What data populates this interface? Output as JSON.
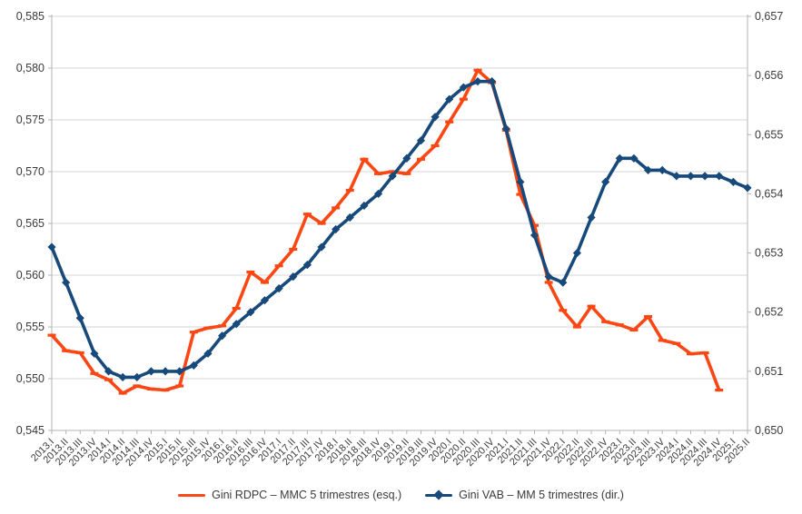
{
  "chart_data": {
    "type": "line",
    "title": "",
    "grid": "horizontal",
    "legend_position": "bottom",
    "categories": [
      "2013.I",
      "2013.II",
      "2013.III",
      "2013.IV",
      "2014.I",
      "2014.II",
      "2014.III",
      "2014.IV",
      "2015.I",
      "2015.II",
      "2015.III",
      "2015.IV",
      "2016.I",
      "2016.II",
      "2016.III",
      "2016.IV",
      "2017.I",
      "2017.II",
      "2017.III",
      "2017.IV",
      "2018.I",
      "2018.II",
      "2018.III",
      "2018.IV",
      "2019.I",
      "2019.II",
      "2019.III",
      "2019.IV",
      "2020.I",
      "2020.II",
      "2020.III",
      "2020.IV",
      "2021.I",
      "2021.II",
      "2021.III",
      "2021.IV",
      "2022.I",
      "2022.II",
      "2022.III",
      "2022.IV",
      "2023.I",
      "2023.II",
      "2023.III",
      "2023.IV",
      "2024.I",
      "2024.II",
      "2024.III",
      "2024.IV",
      "2025.I",
      "2025.II"
    ],
    "left_axis": {
      "min": 0.545,
      "max": 0.585,
      "step": 0.005,
      "tick_labels": [
        "0,585",
        "0,580",
        "0,575",
        "0,570",
        "0,565",
        "0,560",
        "0,555",
        "0,550",
        "0,545"
      ]
    },
    "right_axis": {
      "min": 0.65,
      "max": 0.657,
      "step": 0.001,
      "tick_labels": [
        "0,657",
        "0,656",
        "0,655",
        "0,654",
        "0,653",
        "0,652",
        "0,651",
        "0,650"
      ]
    },
    "series": [
      {
        "name": "Gini RDPC – MMC 5 trimestres (esq.)",
        "axis": "left",
        "color": "#fb4713",
        "marker": "dash",
        "values": [
          0.5542,
          0.5527,
          0.5525,
          0.5505,
          0.5499,
          0.5486,
          0.5493,
          0.549,
          0.5489,
          0.5493,
          0.5545,
          0.5549,
          0.5551,
          0.5568,
          0.5603,
          0.5593,
          0.5609,
          0.5625,
          0.5659,
          0.565,
          0.5665,
          0.5682,
          0.5712,
          0.5698,
          0.57,
          0.5698,
          0.5712,
          0.5725,
          0.5748,
          0.577,
          0.5798,
          0.5786,
          0.574,
          0.5678,
          0.5648,
          0.5593,
          0.5566,
          0.555,
          0.557,
          0.5555,
          0.5552,
          0.5547,
          0.556,
          0.5537,
          0.5534,
          0.5524,
          0.5525,
          0.5489,
          null,
          null
        ]
      },
      {
        "name": "Gini VAB – MM 5 trimestres (dir.)",
        "axis": "right",
        "color": "#17497b",
        "marker": "diamond",
        "values": [
          0.6531,
          0.6525,
          0.6519,
          0.6513,
          0.651,
          0.6509,
          0.6509,
          0.651,
          0.651,
          0.651,
          0.6511,
          0.6513,
          0.6516,
          0.6518,
          0.652,
          0.6522,
          0.6524,
          0.6526,
          0.6528,
          0.6531,
          0.6534,
          0.6536,
          0.6538,
          0.654,
          0.6543,
          0.6546,
          0.6549,
          0.6553,
          0.6556,
          0.6558,
          0.6559,
          0.6559,
          0.6551,
          0.6542,
          0.6533,
          0.6526,
          0.6525,
          0.653,
          0.6536,
          0.6542,
          0.6546,
          0.6546,
          0.6544,
          0.6544,
          0.6543,
          0.6543,
          0.6543,
          0.6543,
          0.6542,
          0.6541
        ]
      }
    ],
    "colors": {
      "gridline": "#d6d6d6",
      "axis_line": "#b3b3b3",
      "tick_text": "#3a3a3a",
      "background": "#ffffff"
    }
  }
}
